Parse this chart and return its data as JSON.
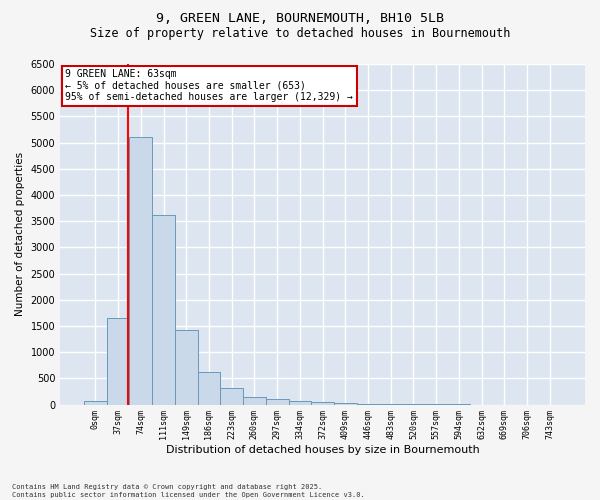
{
  "title_line1": "9, GREEN LANE, BOURNEMOUTH, BH10 5LB",
  "title_line2": "Size of property relative to detached houses in Bournemouth",
  "xlabel": "Distribution of detached houses by size in Bournemouth",
  "ylabel": "Number of detached properties",
  "footnote": "Contains HM Land Registry data © Crown copyright and database right 2025.\nContains public sector information licensed under the Open Government Licence v3.0.",
  "bin_labels": [
    "0sqm",
    "37sqm",
    "74sqm",
    "111sqm",
    "149sqm",
    "186sqm",
    "223sqm",
    "260sqm",
    "297sqm",
    "334sqm",
    "372sqm",
    "409sqm",
    "446sqm",
    "483sqm",
    "520sqm",
    "557sqm",
    "594sqm",
    "632sqm",
    "669sqm",
    "706sqm",
    "743sqm"
  ],
  "bar_values": [
    65,
    1650,
    5100,
    3620,
    1430,
    620,
    310,
    150,
    100,
    65,
    50,
    30,
    15,
    8,
    5,
    3,
    2,
    1,
    1,
    0,
    0
  ],
  "bar_color": "#c9d9ea",
  "bar_edge_color": "#6699bb",
  "red_line_x": 1.45,
  "annotation_line1": "9 GREEN LANE: 63sqm",
  "annotation_line2": "← 5% of detached houses are smaller (653)",
  "annotation_line3": "95% of semi-detached houses are larger (12,329) →",
  "annotation_box_facecolor": "#ffffff",
  "annotation_box_edgecolor": "#cc0000",
  "ylim_max": 6500,
  "yticks": [
    0,
    500,
    1000,
    1500,
    2000,
    2500,
    3000,
    3500,
    4000,
    4500,
    5000,
    5500,
    6000,
    6500
  ],
  "plot_bg_color": "#dde6f0",
  "fig_bg_color": "#f5f5f5",
  "grid_color": "#ffffff",
  "title1_fontsize": 9.5,
  "title2_fontsize": 8.5,
  "xlabel_fontsize": 8,
  "ylabel_fontsize": 7.5,
  "tick_fontsize": 6,
  "ytick_fontsize": 7,
  "annot_fontsize": 7,
  "footnote_fontsize": 5
}
